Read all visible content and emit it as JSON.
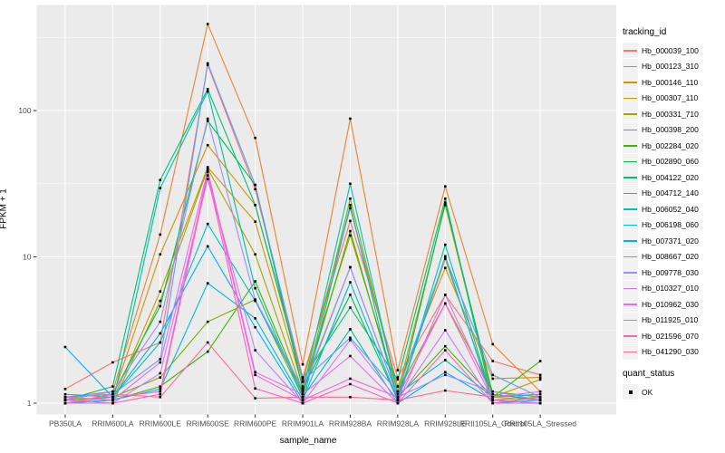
{
  "figure": {
    "x_axis_title": "sample_name",
    "y_axis_title": "FPKM + 1",
    "legend": {
      "tracking_title": "tracking_id",
      "quant_title": "quant_status",
      "quant_item": "OK"
    },
    "colors": {
      "panel_bg": "#EBEBEB",
      "grid": "#FFFFFF",
      "tick": "#333333",
      "tick_label": "#4D4D4D",
      "point": "#000000",
      "legend_key_bg": "#F2F2F2"
    }
  },
  "chart_data": {
    "type": "line",
    "title": "",
    "xlabel": "sample_name",
    "ylabel": "FPKM + 1",
    "y_scale": "log10",
    "ylim": [
      1,
      400
    ],
    "y_major_ticks": [
      1,
      10,
      100
    ],
    "y_tick_labels": [
      "1",
      "10",
      "100"
    ],
    "y_minor_ticks": [
      3.162,
      31.62,
      316.2
    ],
    "grid": true,
    "legend_position": "right",
    "marker": "black-square",
    "x_categories": [
      "PB350LA",
      "RRIM600LA",
      "RRIM600LE",
      "RRIM600SE",
      "RRIM600PE",
      "RRIM901LA",
      "RRIM928BA",
      "RRIM928LA",
      "RRIM928LE",
      "RRII105LA_Control",
      "RRII105LA_Stressed"
    ],
    "series": [
      {
        "name": "Hb_000039_100",
        "color": "#F8766D",
        "values": [
          1.25,
          1.9,
          2.6,
          205,
          29,
          1.5,
          17.6,
          1.5,
          5.5,
          1.94,
          1.56
        ]
      },
      {
        "name": "Hb_000123_310",
        "color": "#EA8331",
        "values": [
          1.1,
          1.2,
          14.2,
          390,
          65,
          1.84,
          88,
          1.68,
          30.3,
          2.53,
          1.2
        ]
      },
      {
        "name": "Hb_000146_110",
        "color": "#D89000",
        "values": [
          1.05,
          1.1,
          10.4,
          58,
          22.6,
          1.4,
          21.5,
          1.3,
          8.4,
          1.47,
          1.5
        ]
      },
      {
        "name": "Hb_000307_110",
        "color": "#C49A00",
        "values": [
          1.0,
          1.05,
          5.8,
          41,
          17.4,
          1.3,
          14,
          1.2,
          22.6,
          1.1,
          1.45
        ]
      },
      {
        "name": "Hb_000331_710",
        "color": "#A3A500",
        "values": [
          1.0,
          1.0,
          5.0,
          40,
          10.4,
          1.2,
          8.5,
          1.1,
          9.7,
          1.05,
          1.1
        ]
      },
      {
        "name": "Hb_000398_200",
        "color": "#7CAE00",
        "values": [
          1.05,
          1.1,
          1.5,
          3.6,
          5.1,
          1.1,
          25,
          1.2,
          4.8,
          1.2,
          1.1
        ]
      },
      {
        "name": "Hb_002284_020",
        "color": "#39B600",
        "values": [
          1.0,
          1.05,
          1.3,
          2.25,
          6.8,
          1.15,
          15,
          1.1,
          2.45,
          1.1,
          1.94
        ]
      },
      {
        "name": "Hb_002890_060",
        "color": "#00BB4E",
        "values": [
          1.1,
          1.15,
          4.6,
          85,
          31,
          1.25,
          5.5,
          1.05,
          23.5,
          1.15,
          1.05
        ]
      },
      {
        "name": "Hb_004122_020",
        "color": "#00BF7D",
        "values": [
          1.05,
          1.3,
          33.5,
          140,
          22.6,
          1.47,
          4.5,
          1.45,
          25,
          1.0,
          1.1
        ]
      },
      {
        "name": "Hb_004712_140",
        "color": "#00C1A3",
        "values": [
          1.0,
          1.0,
          29.5,
          135,
          6.1,
          1.1,
          3.2,
          1.0,
          12.1,
          1.05,
          1.0
        ]
      },
      {
        "name": "Hb_006052_040",
        "color": "#00BFC4",
        "values": [
          1.15,
          1.1,
          2.6,
          16.8,
          5.0,
          1.2,
          31.6,
          1.15,
          1.97,
          1.1,
          1.15
        ]
      },
      {
        "name": "Hb_006198_060",
        "color": "#00BAE0",
        "values": [
          1.0,
          1.05,
          1.25,
          6.6,
          3.8,
          1.05,
          6.7,
          1.05,
          10.1,
          1.0,
          1.05
        ]
      },
      {
        "name": "Hb_007371_020",
        "color": "#00B0F6",
        "values": [
          2.42,
          1.1,
          3.0,
          11.8,
          3.3,
          1.0,
          22.6,
          1.0,
          1.63,
          1.05,
          1.0
        ]
      },
      {
        "name": "Hb_008667_020",
        "color": "#619CFF",
        "values": [
          1.1,
          1.15,
          2.0,
          210,
          31,
          1.41,
          2.8,
          1.2,
          9.9,
          1.56,
          1.1
        ]
      },
      {
        "name": "Hb_009778_030",
        "color": "#9590FF",
        "values": [
          1.05,
          1.2,
          3.6,
          88,
          5.1,
          1.25,
          8.5,
          1.1,
          1.56,
          1.2,
          1.05
        ]
      },
      {
        "name": "Hb_010327_010",
        "color": "#C77CFF",
        "values": [
          1.0,
          1.0,
          1.6,
          34,
          2.3,
          1.0,
          2.7,
          1.05,
          3.15,
          1.0,
          1.0
        ]
      },
      {
        "name": "Hb_010962_030",
        "color": "#E76BF3",
        "values": [
          1.1,
          1.05,
          1.9,
          39,
          1.63,
          1.15,
          2.1,
          1.0,
          5.5,
          1.1,
          1.2
        ]
      },
      {
        "name": "Hb_011925_010",
        "color": "#FA62DB",
        "values": [
          1.0,
          1.1,
          1.2,
          38,
          1.56,
          1.05,
          1.47,
          1.1,
          4.8,
          1.05,
          1.0
        ]
      },
      {
        "name": "Hb_021596_070",
        "color": "#FF62BC",
        "values": [
          1.05,
          1.0,
          1.15,
          36,
          1.26,
          1.0,
          1.35,
          1.0,
          2.3,
          1.0,
          1.1
        ]
      },
      {
        "name": "Hb_041290_030",
        "color": "#FF6A98",
        "values": [
          1.0,
          1.15,
          1.1,
          2.6,
          1.08,
          1.1,
          1.1,
          1.05,
          1.22,
          1.1,
          1.05
        ]
      }
    ]
  }
}
